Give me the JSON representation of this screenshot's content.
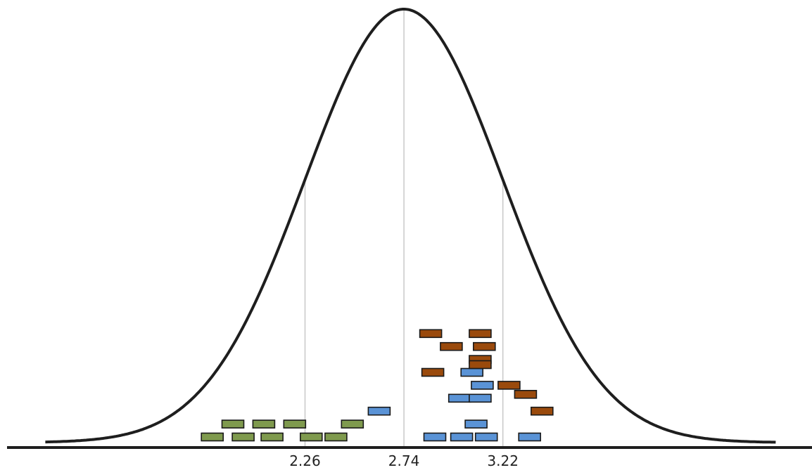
{
  "chart_data": {
    "type": "scatter",
    "title": "",
    "xlabel": "",
    "ylabel": "",
    "distribution": {
      "kind": "normal",
      "mean": 2.74,
      "sd": 0.48
    },
    "xlim": [
      0.78,
      4.72
    ],
    "reference_lines": [
      2.26,
      2.74,
      3.22
    ],
    "tick_labels": [
      "2.26",
      "2.74",
      "3.22"
    ],
    "grid": false,
    "legend": "none",
    "colors": {
      "green": "#7f9a4e",
      "blue": "#5a93d6",
      "brown": "#9a4a0c"
    },
    "series": [
      {
        "color": "green",
        "points": [
          {
            "x": 1.81,
            "y": 1
          },
          {
            "x": 1.96,
            "y": 1
          },
          {
            "x": 2.1,
            "y": 1
          },
          {
            "x": 2.29,
            "y": 1
          },
          {
            "x": 2.41,
            "y": 1
          },
          {
            "x": 1.91,
            "y": 2
          },
          {
            "x": 2.06,
            "y": 2
          },
          {
            "x": 2.21,
            "y": 2
          },
          {
            "x": 2.49,
            "y": 2
          }
        ]
      },
      {
        "color": "blue",
        "points": [
          {
            "x": 2.62,
            "y": 3
          },
          {
            "x": 2.89,
            "y": 1
          },
          {
            "x": 3.02,
            "y": 1
          },
          {
            "x": 3.14,
            "y": 1
          },
          {
            "x": 3.35,
            "y": 1
          },
          {
            "x": 3.09,
            "y": 2
          },
          {
            "x": 3.01,
            "y": 4
          },
          {
            "x": 3.11,
            "y": 4
          },
          {
            "x": 3.12,
            "y": 5
          },
          {
            "x": 3.07,
            "y": 6
          }
        ]
      },
      {
        "color": "brown",
        "points": [
          {
            "x": 2.87,
            "y": 9
          },
          {
            "x": 3.11,
            "y": 9
          },
          {
            "x": 2.97,
            "y": 8
          },
          {
            "x": 3.13,
            "y": 8
          },
          {
            "x": 3.11,
            "y": 7
          },
          {
            "x": 2.88,
            "y": 6
          },
          {
            "x": 3.11,
            "y": 6.6
          },
          {
            "x": 3.25,
            "y": 5
          },
          {
            "x": 3.33,
            "y": 4.3
          },
          {
            "x": 3.41,
            "y": 3
          }
        ]
      }
    ]
  }
}
